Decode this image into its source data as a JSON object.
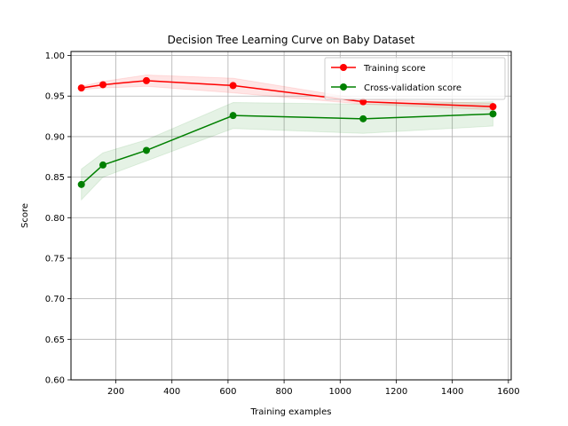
{
  "chart_data": {
    "type": "line",
    "title": "Decision Tree Learning Curve on Baby Dataset",
    "xlabel": "Training examples",
    "ylabel": "Score",
    "xlim": [
      40,
      1610
    ],
    "ylim": [
      0.6,
      1.005
    ],
    "xticks": [
      200,
      400,
      600,
      800,
      1000,
      1200,
      1400,
      1600
    ],
    "yticks": [
      0.6,
      0.65,
      0.7,
      0.75,
      0.8,
      0.85,
      0.9,
      0.95,
      1.0
    ],
    "xtick_labels": [
      "200",
      "400",
      "600",
      "800",
      "1000",
      "1200",
      "1400",
      "1600"
    ],
    "ytick_labels": [
      "0.60",
      "0.65",
      "0.70",
      "0.75",
      "0.80",
      "0.85",
      "0.90",
      "0.95",
      "1.00"
    ],
    "grid": true,
    "legend_position": "top-right",
    "x": [
      77,
      154,
      309,
      618,
      1082,
      1545
    ],
    "series": [
      {
        "name": "Training score",
        "color": "#ff0000",
        "values": [
          0.96,
          0.964,
          0.969,
          0.963,
          0.943,
          0.937
        ],
        "band_upper": [
          0.962,
          0.968,
          0.976,
          0.972,
          0.946,
          0.941
        ],
        "band_lower": [
          0.958,
          0.96,
          0.962,
          0.954,
          0.94,
          0.933
        ]
      },
      {
        "name": "Cross-validation score",
        "color": "#008000",
        "values": [
          0.841,
          0.865,
          0.883,
          0.926,
          0.922,
          0.928
        ],
        "band_upper": [
          0.86,
          0.88,
          0.896,
          0.942,
          0.94,
          0.943
        ],
        "band_lower": [
          0.822,
          0.85,
          0.87,
          0.91,
          0.904,
          0.913
        ]
      }
    ]
  }
}
